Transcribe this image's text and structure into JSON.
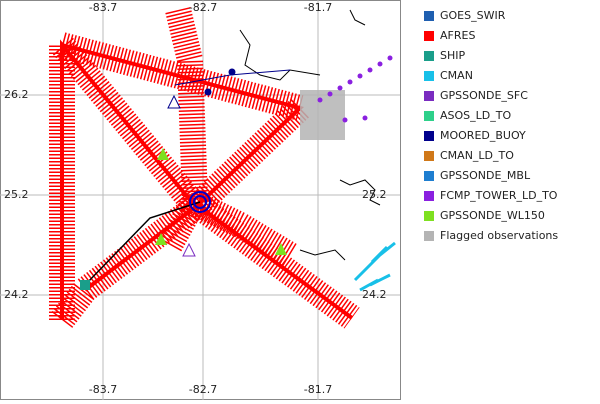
{
  "map": {
    "lon_labels_top": [
      "-83.7",
      "-82.7",
      "-81.7"
    ],
    "lon_labels_bottom": [
      "-83.7",
      "-82.7",
      "-81.7"
    ],
    "lat_labels_left": [
      "26.2",
      "25.2",
      "24.2"
    ],
    "lat_labels_right": [
      "25.2",
      "24.2"
    ]
  },
  "legend": [
    {
      "name": "GOES_SWIR",
      "color": "#1f5fb0"
    },
    {
      "name": "AFRES",
      "color": "#ff0000"
    },
    {
      "name": "SHIP",
      "color": "#1a9e8a"
    },
    {
      "name": "CMAN",
      "color": "#18c0e8"
    },
    {
      "name": "GPSSONDE_SFC",
      "color": "#7a2cc0"
    },
    {
      "name": "ASOS_LD_TO",
      "color": "#2ed08a"
    },
    {
      "name": "MOORED_BUOY",
      "color": "#00008c"
    },
    {
      "name": "CMAN_LD_TO",
      "color": "#d07818"
    },
    {
      "name": "GPSSONDE_MBL",
      "color": "#1e7ed0"
    },
    {
      "name": "FCMP_TOWER_LD_TO",
      "color": "#8a20e0"
    },
    {
      "name": "GPSSONDE_WL150",
      "color": "#7ee020"
    },
    {
      "name": "Flagged observations",
      "color": "#b4b4b4"
    }
  ]
}
